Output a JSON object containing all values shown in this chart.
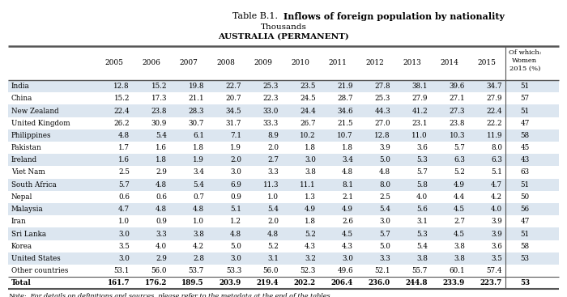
{
  "title_normal": "Table B.1.  ",
  "title_bold": "Inflows of foreign population by nationality",
  "title2": "Thousands",
  "title3": "AUSTRALIA (PERMANENT)",
  "note": "Note:  For details on definitions and sources, please refer to the metadata at the end of the tables.",
  "year_cols": [
    "2005",
    "2006",
    "2007",
    "2008",
    "2009",
    "2010",
    "2011",
    "2012",
    "2013",
    "2014",
    "2015"
  ],
  "last_col": "Of which:\nWomen\n2015 (%)",
  "rows": [
    [
      "India",
      "12.8",
      "15.2",
      "19.8",
      "22.7",
      "25.3",
      "23.5",
      "21.9",
      "27.8",
      "38.1",
      "39.6",
      "34.7",
      "51"
    ],
    [
      "China",
      "15.2",
      "17.3",
      "21.1",
      "20.7",
      "22.3",
      "24.5",
      "28.7",
      "25.3",
      "27.9",
      "27.1",
      "27.9",
      "57"
    ],
    [
      "New Zealand",
      "22.4",
      "23.8",
      "28.3",
      "34.5",
      "33.0",
      "24.4",
      "34.6",
      "44.3",
      "41.2",
      "27.3",
      "22.4",
      "51"
    ],
    [
      "United Kingdom",
      "26.2",
      "30.9",
      "30.7",
      "31.7",
      "33.3",
      "26.7",
      "21.5",
      "27.0",
      "23.1",
      "23.8",
      "22.2",
      "47"
    ],
    [
      "Philippines",
      "4.8",
      "5.4",
      "6.1",
      "7.1",
      "8.9",
      "10.2",
      "10.7",
      "12.8",
      "11.0",
      "10.3",
      "11.9",
      "58"
    ],
    [
      "Pakistan",
      "1.7",
      "1.6",
      "1.8",
      "1.9",
      "2.0",
      "1.8",
      "1.8",
      "3.9",
      "3.6",
      "5.7",
      "8.0",
      "45"
    ],
    [
      "Ireland",
      "1.6",
      "1.8",
      "1.9",
      "2.0",
      "2.7",
      "3.0",
      "3.4",
      "5.0",
      "5.3",
      "6.3",
      "6.3",
      "43"
    ],
    [
      "Viet Nam",
      "2.5",
      "2.9",
      "3.4",
      "3.0",
      "3.3",
      "3.8",
      "4.8",
      "4.8",
      "5.7",
      "5.2",
      "5.1",
      "63"
    ],
    [
      "South Africa",
      "5.7",
      "4.8",
      "5.4",
      "6.9",
      "11.3",
      "11.1",
      "8.1",
      "8.0",
      "5.8",
      "4.9",
      "4.7",
      "51"
    ],
    [
      "Nepal",
      "0.6",
      "0.6",
      "0.7",
      "0.9",
      "1.0",
      "1.3",
      "2.1",
      "2.5",
      "4.0",
      "4.4",
      "4.2",
      "50"
    ],
    [
      "Malaysia",
      "4.7",
      "4.8",
      "4.8",
      "5.1",
      "5.4",
      "4.9",
      "4.9",
      "5.4",
      "5.6",
      "4.5",
      "4.0",
      "56"
    ],
    [
      "Iran",
      "1.0",
      "0.9",
      "1.0",
      "1.2",
      "2.0",
      "1.8",
      "2.6",
      "3.0",
      "3.1",
      "2.7",
      "3.9",
      "47"
    ],
    [
      "Sri Lanka",
      "3.0",
      "3.3",
      "3.8",
      "4.8",
      "4.8",
      "5.2",
      "4.5",
      "5.7",
      "5.3",
      "4.5",
      "3.9",
      "51"
    ],
    [
      "Korea",
      "3.5",
      "4.0",
      "4.2",
      "5.0",
      "5.2",
      "4.3",
      "4.3",
      "5.0",
      "5.4",
      "3.8",
      "3.6",
      "58"
    ],
    [
      "United States",
      "3.0",
      "2.9",
      "2.8",
      "3.0",
      "3.1",
      "3.2",
      "3.0",
      "3.3",
      "3.8",
      "3.8",
      "3.5",
      "53"
    ],
    [
      "Other countries",
      "53.1",
      "56.0",
      "53.7",
      "53.3",
      "56.0",
      "52.3",
      "49.6",
      "52.1",
      "55.7",
      "60.1",
      "57.4",
      ""
    ],
    [
      "Total",
      "161.7",
      "176.2",
      "189.5",
      "203.9",
      "219.4",
      "202.2",
      "206.4",
      "236.0",
      "244.8",
      "233.9",
      "223.7",
      "53"
    ]
  ],
  "shaded_rows": [
    0,
    2,
    4,
    6,
    8,
    10,
    12,
    14
  ],
  "shade_color": "#dce6f0",
  "bg_color": "#ffffff",
  "border_color": "#555555",
  "total_row_idx": 16
}
